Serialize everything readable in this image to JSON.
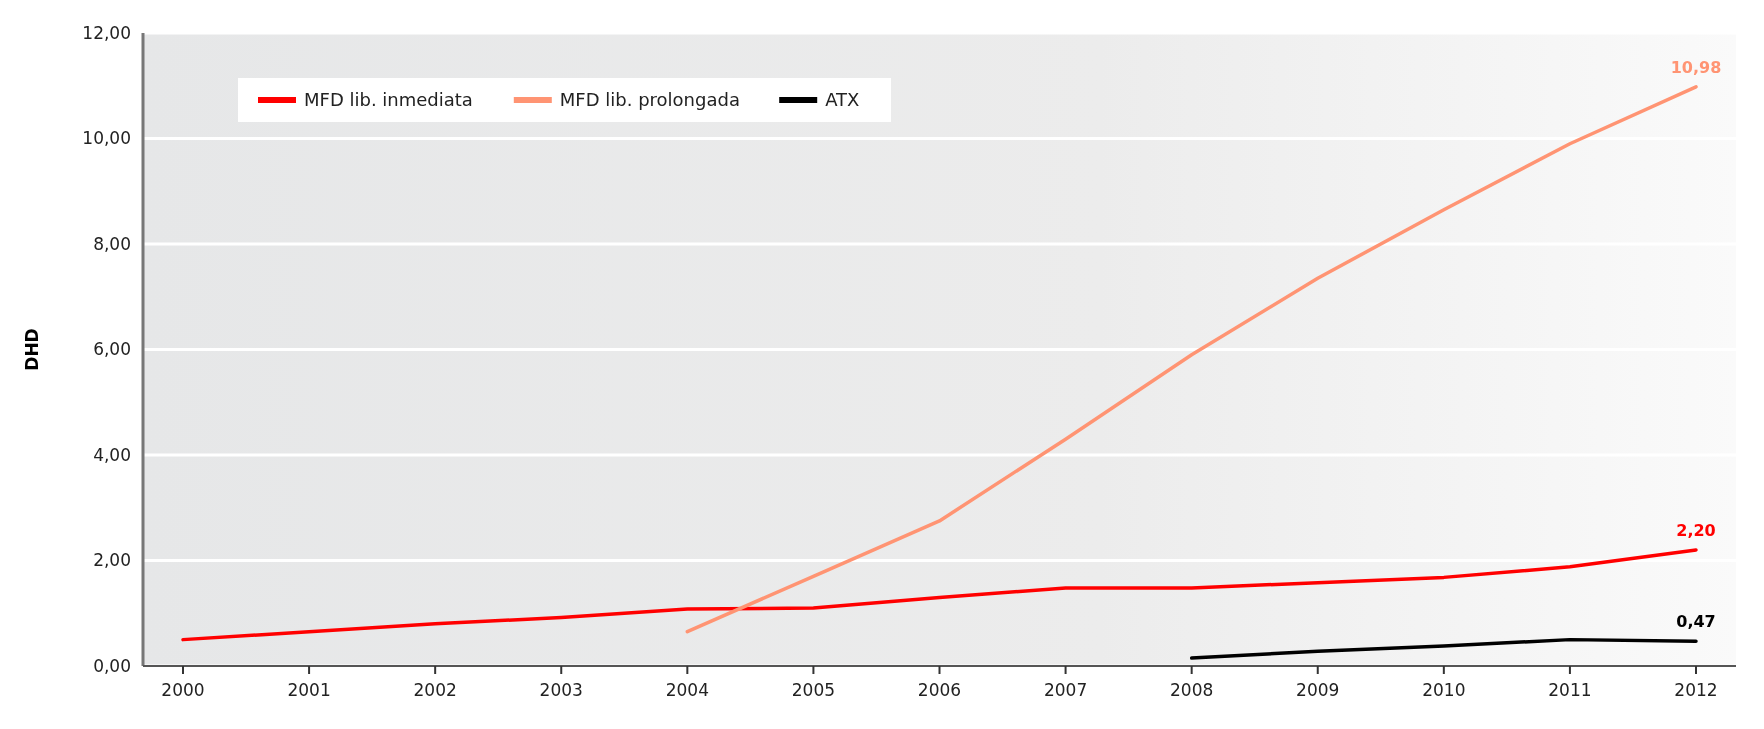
{
  "chart_data": {
    "type": "line",
    "ylabel": "DHD",
    "categories": [
      "2000",
      "2001",
      "2002",
      "2003",
      "2004",
      "2005",
      "2006",
      "2007",
      "2008",
      "2009",
      "2010",
      "2011",
      "2012"
    ],
    "ylim": [
      0,
      12
    ],
    "yticks": [
      {
        "value": 0,
        "label": "0,00"
      },
      {
        "value": 2,
        "label": "2,00"
      },
      {
        "value": 4,
        "label": "4,00"
      },
      {
        "value": 6,
        "label": "6,00"
      },
      {
        "value": 8,
        "label": "8,00"
      },
      {
        "value": 10,
        "label": "10,00"
      },
      {
        "value": 12,
        "label": "12,00"
      }
    ],
    "grid": "y",
    "legend": "top left",
    "marker": "none",
    "line_style": "solid",
    "series": [
      {
        "name": "MFD lib. inmediata",
        "color": "#ff0000",
        "values": [
          0.5,
          0.65,
          0.8,
          0.92,
          1.08,
          1.1,
          1.3,
          1.48,
          1.48,
          1.58,
          1.68,
          1.88,
          2.2
        ],
        "value_labels": [
          null,
          null,
          null,
          null,
          null,
          null,
          null,
          null,
          null,
          null,
          null,
          null,
          "2,20"
        ]
      },
      {
        "name": "MFD lib. prolongada",
        "color": "#ff9473",
        "values": [
          null,
          null,
          null,
          null,
          0.65,
          1.7,
          2.75,
          4.3,
          5.9,
          7.35,
          8.65,
          9.9,
          10.98
        ],
        "value_labels": [
          null,
          null,
          null,
          null,
          null,
          null,
          null,
          null,
          null,
          null,
          null,
          null,
          "10,98"
        ]
      },
      {
        "name": "ATX",
        "color": "#000000",
        "values": [
          null,
          null,
          null,
          null,
          null,
          null,
          null,
          null,
          0.15,
          0.28,
          0.38,
          0.5,
          0.47
        ],
        "value_labels": [
          null,
          null,
          null,
          null,
          null,
          null,
          null,
          null,
          null,
          null,
          null,
          null,
          "0,47"
        ]
      }
    ]
  }
}
